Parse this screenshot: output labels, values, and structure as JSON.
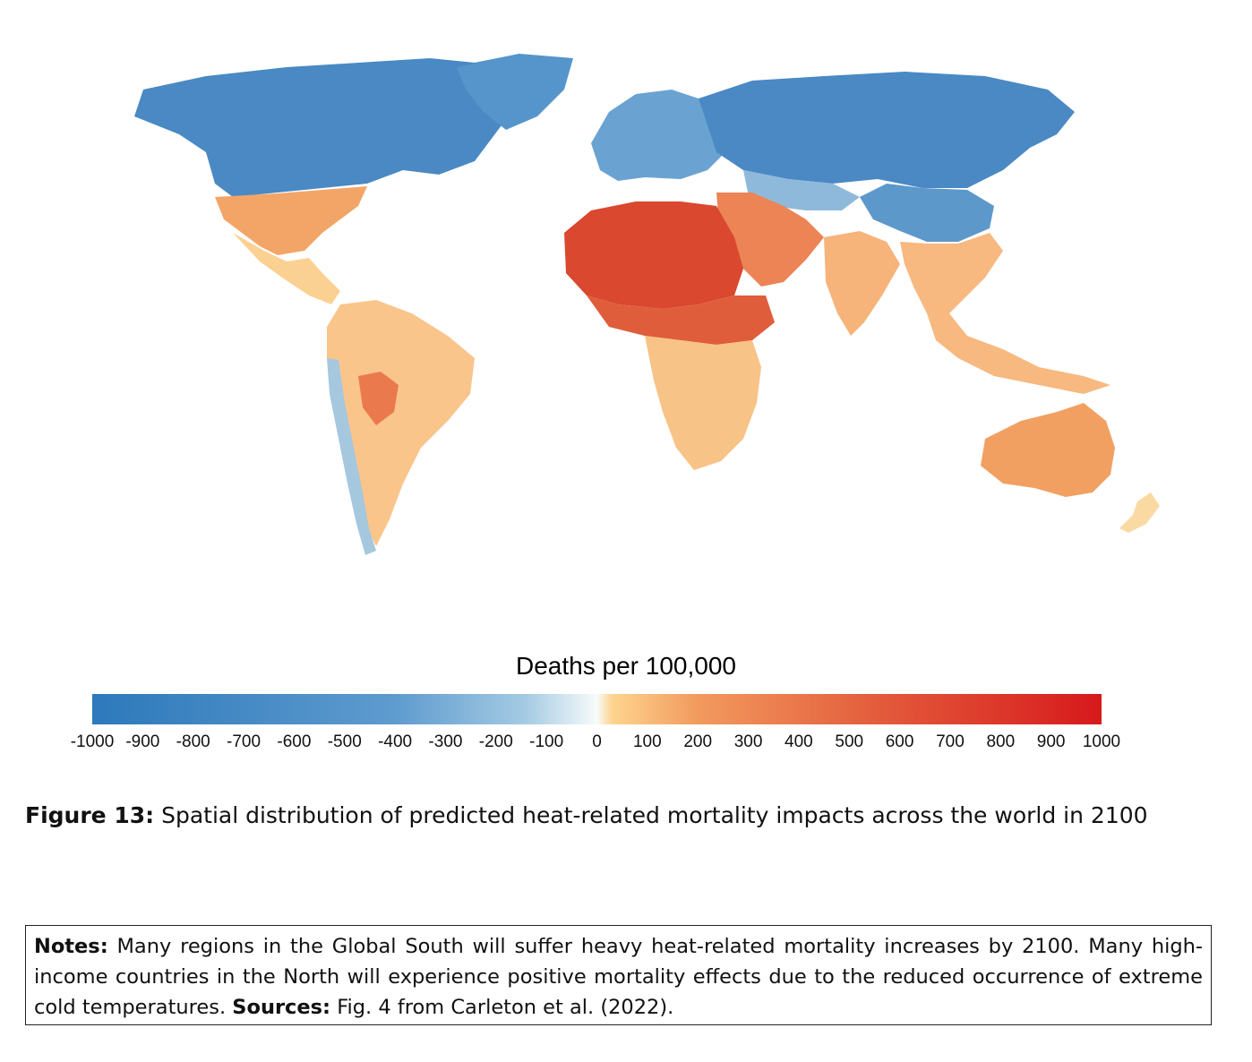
{
  "map": {
    "region_fills": {
      "north_america_north": "#4a89c3",
      "north_america_south": "#f3a567",
      "central_america": "#fbd193",
      "south_america": "#f9c58b",
      "south_america_andes": "#a5c8df",
      "south_america_central": "#ea7a4d",
      "greenland": "#5595cb",
      "europe": "#6aa3d2",
      "russia": "#4a89c3",
      "central_asia": "#8fb9db",
      "north_africa": "#d9482f",
      "sahel": "#e05d3b",
      "southern_africa": "#f8c386",
      "middle_east": "#ec8455",
      "india": "#f6b47a",
      "china": "#5d98cb",
      "southeast_asia": "#f7b97f",
      "australia": "#f2a062",
      "new_zealand": "#fbd9a2"
    }
  },
  "legend": {
    "title": "Deaths per 100,000",
    "min": -1000,
    "max": 1000,
    "ticks": [
      "-1000",
      "-900",
      "-800",
      "-700",
      "-600",
      "-500",
      "-400",
      "-300",
      "-200",
      "-100",
      "0",
      "100",
      "200",
      "300",
      "400",
      "500",
      "600",
      "700",
      "800",
      "900",
      "1000"
    ],
    "colors": {
      "negative_end": "#2d79bb",
      "negative_mid": "#5e9bcf",
      "negative_light": "#a5cbe3",
      "zero": "#f7fbfa",
      "positive_light": "#fed48e",
      "positive_mid": "#f29a5e",
      "positive_strong": "#e35b3b",
      "positive_end": "#d7191c"
    }
  },
  "caption": {
    "label": "Figure 13:",
    "text": "Spatial distribution of predicted heat-related mortality impacts across the world in 2100"
  },
  "notes": {
    "notes_label": "Notes:",
    "notes_text": "Many regions in the Global South will suffer heavy heat-related mortality increases by 2100. Many high-income countries in the North will experience positive mortality effects due to the reduced occurrence of extreme cold temperatures.",
    "sources_label": "Sources:",
    "sources_text": "Fig. 4 from Carleton et al. (2022)."
  }
}
